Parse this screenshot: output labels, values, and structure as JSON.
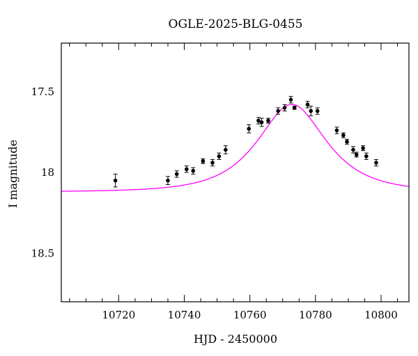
{
  "chart_data": {
    "type": "scatter",
    "title": "OGLE-2025-BLG-0455",
    "xlabel": "HJD - 2450000",
    "ylabel": "I magnitude",
    "xlim": [
      10702.5,
      10808.5
    ],
    "ylim": [
      18.8,
      17.2
    ],
    "y_inverted": true,
    "x_ticks": [
      10720,
      10740,
      10760,
      10780,
      10800
    ],
    "x_tick_labels": [
      "10720",
      "10740",
      "10760",
      "10780",
      "10800"
    ],
    "y_ticks": [
      17.5,
      18,
      18.5
    ],
    "y_tick_labels": [
      "17.5",
      "18",
      "18.5"
    ],
    "grid": false,
    "legend": "none",
    "series": [
      {
        "kind": "points",
        "color": "#000000",
        "points": [
          {
            "x": 10719.0,
            "y": 18.05,
            "err": 0.04
          },
          {
            "x": 10735.0,
            "y": 18.05,
            "err": 0.025
          },
          {
            "x": 10737.7,
            "y": 18.01,
            "err": 0.02
          },
          {
            "x": 10740.7,
            "y": 17.98,
            "err": 0.02
          },
          {
            "x": 10742.7,
            "y": 17.99,
            "err": 0.02
          },
          {
            "x": 10745.7,
            "y": 17.93,
            "err": 0.015
          },
          {
            "x": 10748.6,
            "y": 17.94,
            "err": 0.02
          },
          {
            "x": 10750.6,
            "y": 17.9,
            "err": 0.02
          },
          {
            "x": 10752.6,
            "y": 17.86,
            "err": 0.025
          },
          {
            "x": 10759.7,
            "y": 17.73,
            "err": 0.025
          },
          {
            "x": 10762.6,
            "y": 17.68,
            "err": 0.02
          },
          {
            "x": 10763.6,
            "y": 17.69,
            "err": 0.025
          },
          {
            "x": 10765.6,
            "y": 17.68,
            "err": 0.015
          },
          {
            "x": 10768.6,
            "y": 17.62,
            "err": 0.02
          },
          {
            "x": 10770.6,
            "y": 17.6,
            "err": 0.02
          },
          {
            "x": 10772.5,
            "y": 17.55,
            "err": 0.02
          },
          {
            "x": 10773.6,
            "y": 17.6,
            "err": 0.01
          },
          {
            "x": 10777.6,
            "y": 17.58,
            "err": 0.02
          },
          {
            "x": 10778.6,
            "y": 17.62,
            "err": 0.03
          },
          {
            "x": 10780.6,
            "y": 17.62,
            "err": 0.02
          },
          {
            "x": 10786.5,
            "y": 17.74,
            "err": 0.02
          },
          {
            "x": 10788.5,
            "y": 17.77,
            "err": 0.015
          },
          {
            "x": 10789.6,
            "y": 17.81,
            "err": 0.015
          },
          {
            "x": 10791.5,
            "y": 17.86,
            "err": 0.02
          },
          {
            "x": 10792.5,
            "y": 17.89,
            "err": 0.015
          },
          {
            "x": 10794.5,
            "y": 17.85,
            "err": 0.015
          },
          {
            "x": 10795.5,
            "y": 17.9,
            "err": 0.02
          },
          {
            "x": 10798.5,
            "y": 17.94,
            "err": 0.02
          }
        ]
      },
      {
        "kind": "model",
        "color": "#ff00ff",
        "model": "microlensing-pspl",
        "t0": 10772.8,
        "tE": 15.0,
        "u0": 0.72,
        "baseline_mag": 18.12,
        "fs": 1.0
      }
    ]
  }
}
